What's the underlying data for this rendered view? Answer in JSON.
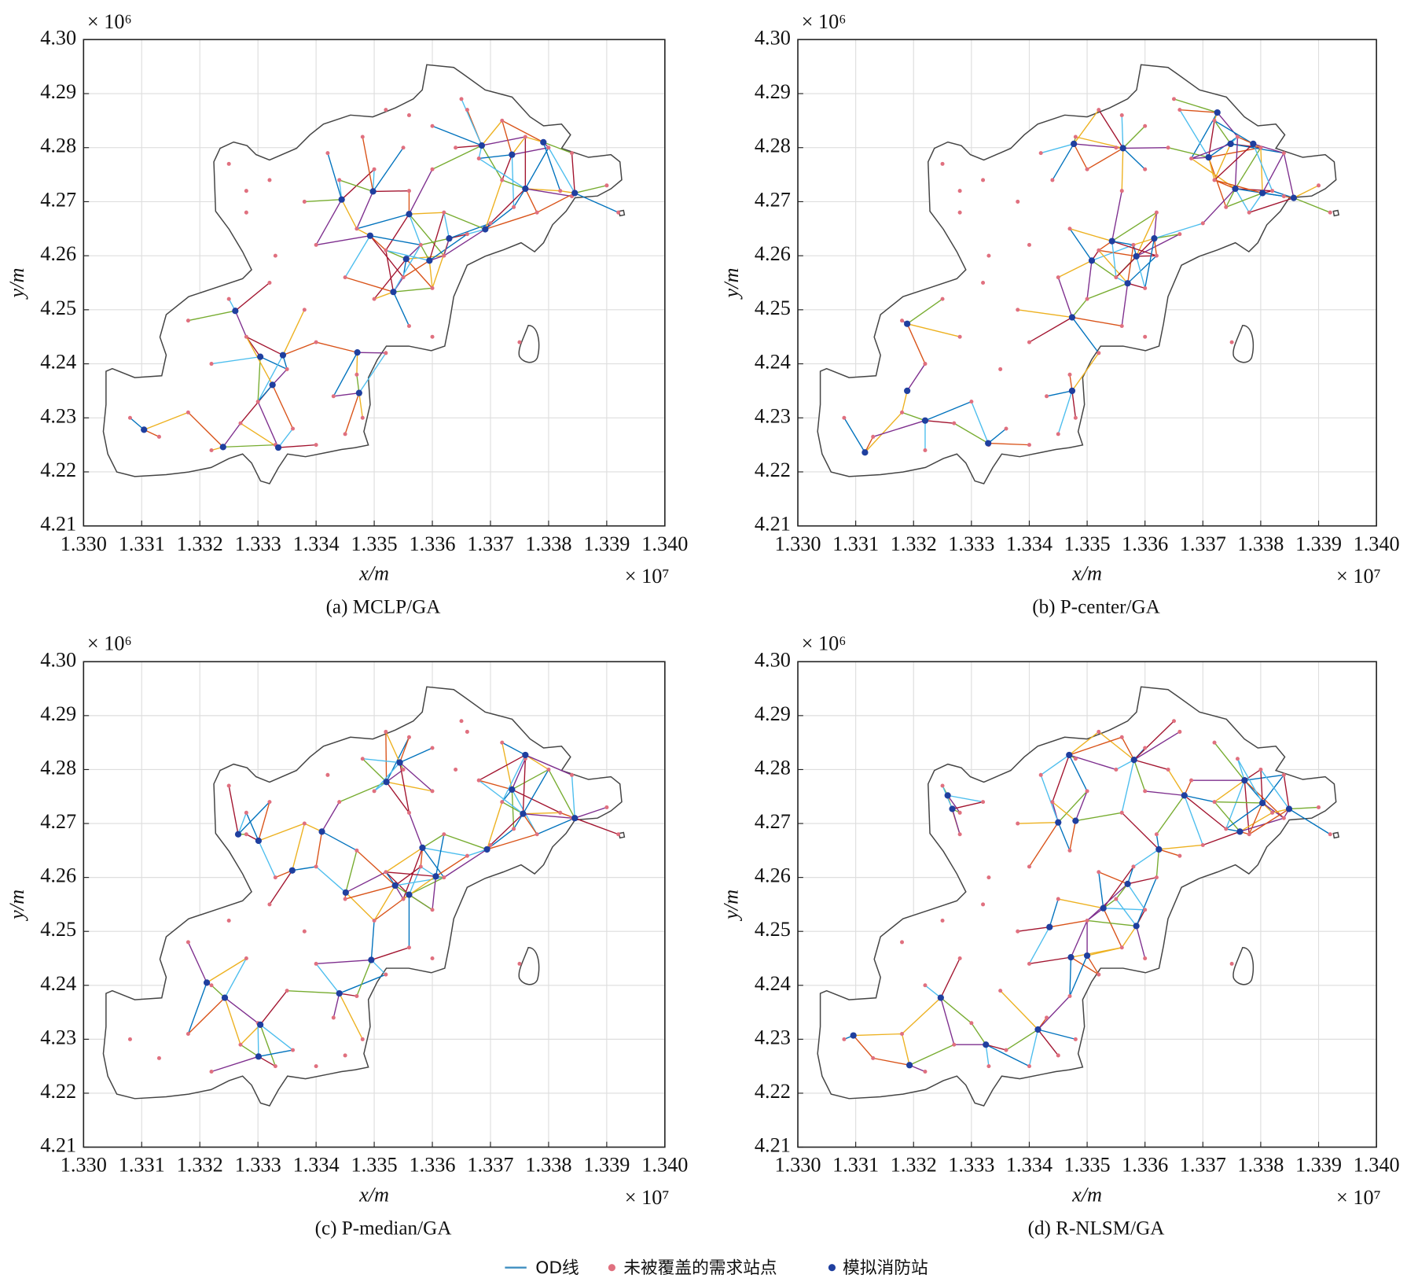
{
  "legend": {
    "items": [
      {
        "name": "OD线",
        "color": "#3f8fc0"
      },
      {
        "name": "未被覆盖的需求站点",
        "color": "#e0707f"
      },
      {
        "name": "模拟消防站",
        "color": "#1f3f9f"
      }
    ]
  },
  "od_colors": [
    "#0072bd",
    "#d95319",
    "#edb120",
    "#7e2f8e",
    "#77ac30",
    "#4dbeee",
    "#a2142f"
  ],
  "demand_points": {
    "x": [
      1.3308,
      1.3313,
      1.3318,
      1.3322,
      1.3327,
      1.333,
      1.3333,
      1.3336,
      1.334,
      1.3345,
      1.3348,
      1.3343,
      1.3322,
      1.3328,
      1.3335,
      1.334,
      1.3347,
      1.3352,
      1.3356,
      1.336,
      1.3318,
      1.3325,
      1.3332,
      1.3338,
      1.3345,
      1.335,
      1.3355,
      1.336,
      1.3362,
      1.3358,
      1.3352,
      1.3347,
      1.334,
      1.3333,
      1.3328,
      1.3328,
      1.3325,
      1.3332,
      1.3338,
      1.3344,
      1.335,
      1.3356,
      1.3362,
      1.3366,
      1.337,
      1.3374,
      1.3378,
      1.3382,
      1.3384,
      1.339,
      1.3372,
      1.3368,
      1.3364,
      1.336,
      1.3356,
      1.3352,
      1.3366,
      1.3372,
      1.3376,
      1.338,
      1.3384,
      1.336,
      1.3355,
      1.3348,
      1.3342,
      1.3365,
      1.3392,
      1.3375
    ],
    "y": [
      4.23,
      4.2265,
      4.231,
      4.224,
      4.229,
      4.233,
      4.225,
      4.228,
      4.225,
      4.227,
      4.23,
      4.234,
      4.24,
      4.245,
      4.239,
      4.244,
      4.238,
      4.242,
      4.247,
      4.245,
      4.248,
      4.252,
      4.255,
      4.25,
      4.256,
      4.252,
      4.256,
      4.254,
      4.26,
      4.262,
      4.261,
      4.265,
      4.262,
      4.26,
      4.268,
      4.272,
      4.277,
      4.274,
      4.27,
      4.274,
      4.276,
      4.272,
      4.268,
      4.264,
      4.266,
      4.269,
      4.268,
      4.272,
      4.271,
      4.273,
      4.274,
      4.278,
      4.28,
      4.284,
      4.286,
      4.287,
      4.287,
      4.285,
      4.282,
      4.28,
      4.279,
      4.276,
      4.28,
      4.282,
      4.279,
      4.289,
      4.268,
      4.244
    ]
  },
  "chart_data": [
    {
      "type": "scatter",
      "caption": "(a) MCLP/GA",
      "xlabel": "x/m",
      "ylabel": "y/m",
      "x_multiplier": "× 10⁷",
      "y_multiplier": "× 10⁶",
      "xlim": [
        1.33,
        1.34
      ],
      "ylim": [
        4.21,
        4.3
      ],
      "xticks": [
        {
          "value": 1.33,
          "label": "1.330"
        },
        1.331,
        1.332,
        1.333,
        1.334,
        1.335,
        1.336,
        1.337,
        1.338,
        1.339,
        {
          "value": 1.34,
          "label": "1.340"
        }
      ],
      "yticks": [
        4.21,
        4.22,
        4.23,
        4.24,
        4.25,
        4.26,
        4.27,
        4.28,
        4.29,
        {
          "value": 4.3,
          "label": "4.30"
        }
      ],
      "grid": true,
      "stations": {
        "x": [
          1.33104,
          1.3324,
          1.33335,
          1.33261,
          1.33304,
          1.33343,
          1.33325,
          1.33471,
          1.33474,
          1.33444,
          1.33498,
          1.3356,
          1.33493,
          1.33555,
          1.33533,
          1.33595,
          1.33629,
          1.33691,
          1.33685,
          1.33737,
          1.3376,
          1.33791,
          1.33845
        ],
        "y": [
          4.2278,
          4.2246,
          4.2245,
          4.2498,
          4.2413,
          4.2416,
          4.2361,
          4.2421,
          4.2346,
          4.2704,
          4.2719,
          4.2677,
          4.2637,
          4.2594,
          4.2533,
          4.2591,
          4.2632,
          4.2649,
          4.2804,
          4.2787,
          4.2724,
          4.281,
          4.2716
        ]
      }
    },
    {
      "type": "scatter",
      "caption": "(b) P-center/GA",
      "xlabel": "x/m",
      "ylabel": "y/m",
      "x_multiplier": "× 10⁷",
      "y_multiplier": "× 10⁶",
      "xlim": [
        1.33,
        1.34
      ],
      "ylim": [
        4.21,
        4.3
      ],
      "xticks": [
        {
          "value": 1.33,
          "label": "1.330"
        },
        1.331,
        1.332,
        1.333,
        1.334,
        1.335,
        1.336,
        1.337,
        1.338,
        1.339,
        {
          "value": 1.34,
          "label": "1.340"
        }
      ],
      "yticks": [
        4.21,
        4.22,
        4.23,
        4.24,
        4.25,
        4.26,
        4.27,
        4.28,
        4.29,
        {
          "value": 4.3,
          "label": "4.30"
        }
      ],
      "grid": true,
      "stations": {
        "x": [
          1.33116,
          1.33189,
          1.33189,
          1.3322,
          1.33329,
          1.33474,
          1.33474,
          1.33477,
          1.33562,
          1.33508,
          1.3357,
          1.33585,
          1.33543,
          1.33616,
          1.33725,
          1.3371,
          1.33748,
          1.33756,
          1.33803,
          1.33787,
          1.33857
        ],
        "y": [
          4.2236,
          4.2474,
          4.235,
          4.2295,
          4.2253,
          4.235,
          4.2486,
          4.2807,
          4.2799,
          4.2591,
          4.2549,
          4.2599,
          4.2627,
          4.2632,
          4.2865,
          4.2782,
          4.2807,
          4.2724,
          4.2716,
          4.2807,
          4.2707
        ]
      }
    },
    {
      "type": "scatter",
      "caption": "(c) P-median/GA",
      "xlabel": "x/m",
      "ylabel": "y/m",
      "x_multiplier": "× 10⁷",
      "y_multiplier": "× 10⁶",
      "xlim": [
        1.33,
        1.34
      ],
      "ylim": [
        4.21,
        4.3
      ],
      "xticks": [
        {
          "value": 1.33,
          "label": "1.330"
        },
        1.331,
        1.332,
        1.333,
        1.334,
        1.335,
        1.336,
        1.337,
        1.338,
        1.339,
        {
          "value": 1.34,
          "label": "1.340"
        }
      ],
      "yticks": [
        4.21,
        4.22,
        4.23,
        4.24,
        4.25,
        4.26,
        4.27,
        4.28,
        4.29,
        {
          "value": 4.3,
          "label": "4.30"
        }
      ],
      "grid": true,
      "stations": {
        "x": [
          1.33212,
          1.33243,
          1.33304,
          1.33301,
          1.33266,
          1.33301,
          1.33359,
          1.3341,
          1.33451,
          1.3344,
          1.33495,
          1.33521,
          1.33544,
          1.33583,
          1.3356,
          1.33536,
          1.33606,
          1.33694,
          1.33737,
          1.3376,
          1.33756,
          1.33845
        ],
        "y": [
          4.2405,
          4.2377,
          4.2327,
          4.2268,
          4.268,
          4.2668,
          4.2613,
          4.2685,
          4.2572,
          4.2385,
          4.2447,
          4.2777,
          4.2813,
          4.2655,
          4.2568,
          4.2585,
          4.2602,
          4.2652,
          4.2763,
          4.2827,
          4.2718,
          4.271
        ]
      }
    },
    {
      "type": "scatter",
      "caption": "(d) R-NLSM/GA",
      "xlabel": "x/m",
      "ylabel": "y/m",
      "x_multiplier": "× 10⁷",
      "y_multiplier": "× 10⁶",
      "xlim": [
        1.33,
        1.34
      ],
      "ylim": [
        4.21,
        4.3
      ],
      "xticks": [
        {
          "value": 1.33,
          "label": "1.330"
        },
        1.331,
        1.332,
        1.333,
        1.334,
        1.335,
        1.336,
        1.337,
        1.338,
        1.339,
        {
          "value": 1.34,
          "label": "1.340"
        }
      ],
      "yticks": [
        4.21,
        4.22,
        4.23,
        4.24,
        4.25,
        4.26,
        4.27,
        4.28,
        4.29,
        {
          "value": 4.3,
          "label": "4.30"
        }
      ],
      "grid": true,
      "stations": {
        "x": [
          1.33096,
          1.33193,
          1.33247,
          1.33325,
          1.33415,
          1.33435,
          1.33472,
          1.335,
          1.33528,
          1.33585,
          1.3357,
          1.33624,
          1.33581,
          1.33469,
          1.3345,
          1.3348,
          1.33259,
          1.33267,
          1.33668,
          1.33772,
          1.33764,
          1.33803,
          1.33849
        ],
        "y": [
          4.2307,
          4.2252,
          4.2377,
          4.229,
          4.2318,
          4.2508,
          4.2452,
          4.2455,
          4.2543,
          4.251,
          4.2588,
          4.2652,
          4.2818,
          4.2827,
          4.2702,
          4.2705,
          4.2752,
          4.2727,
          4.2752,
          4.278,
          4.2685,
          4.2738,
          4.2727
        ]
      }
    }
  ]
}
